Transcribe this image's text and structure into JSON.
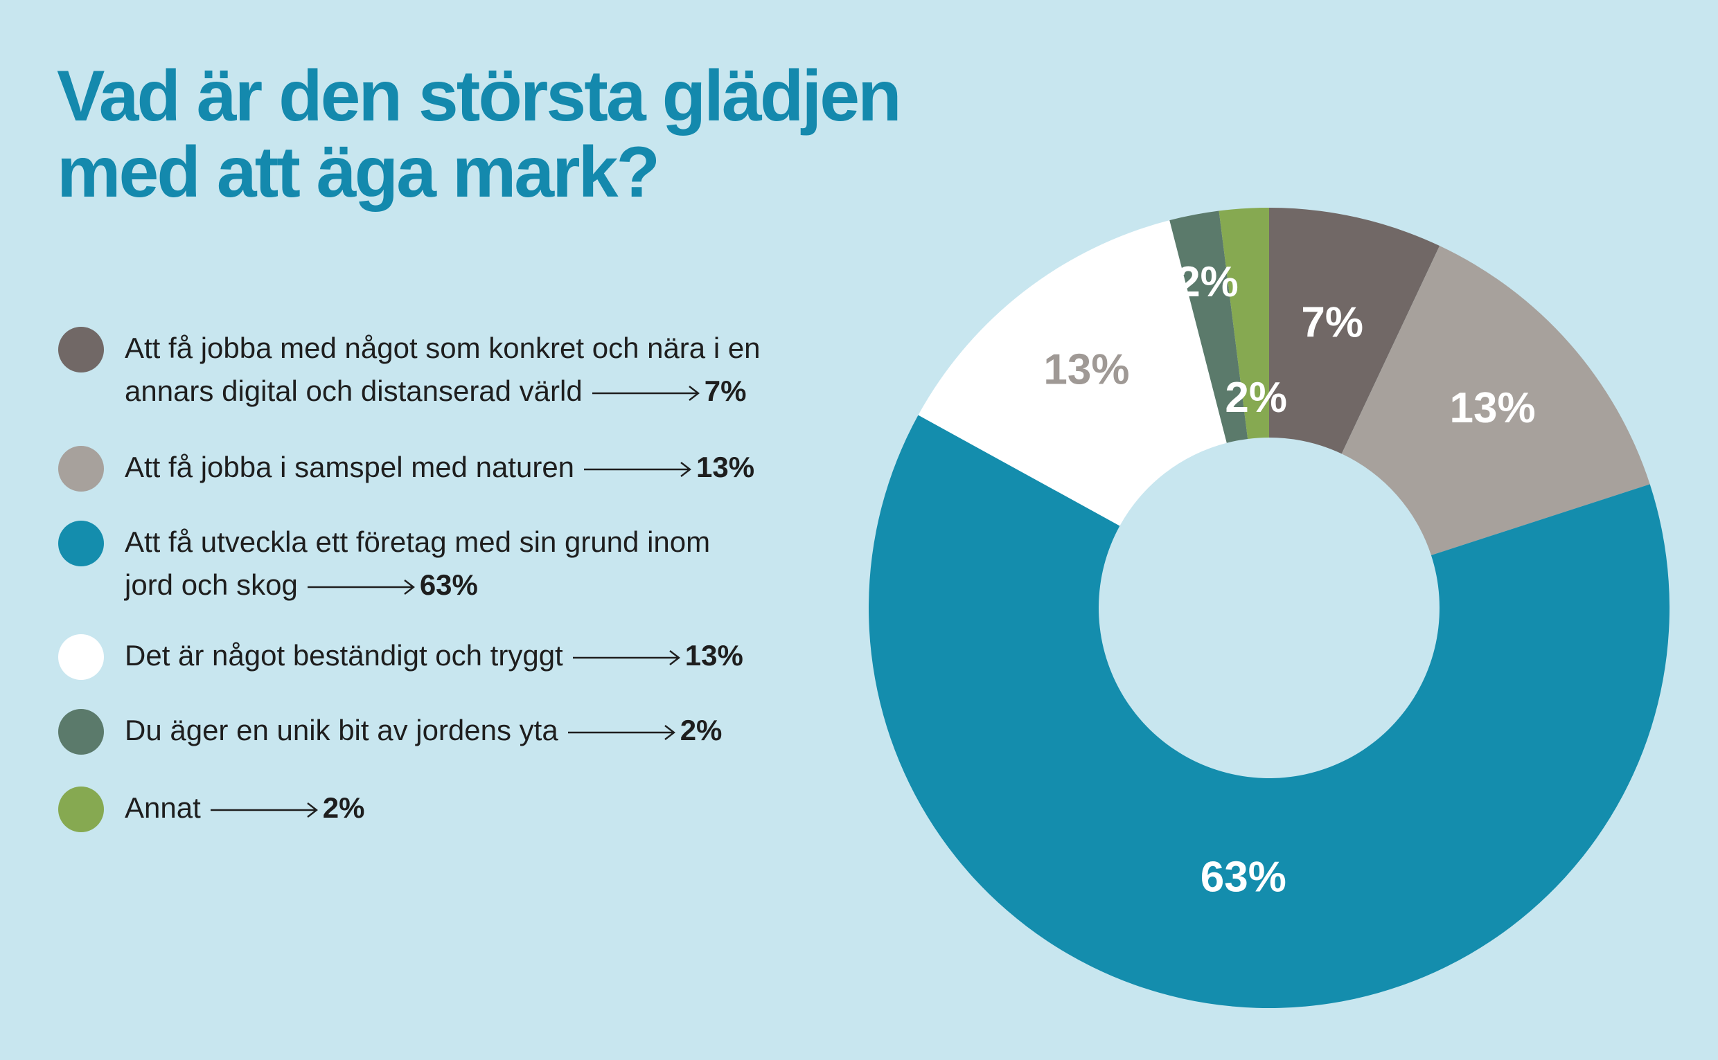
{
  "chart_data": {
    "type": "pie",
    "variant": "donut",
    "title_lines": [
      "Vad är den största glädjen",
      "med att äga mark?"
    ],
    "slices": [
      {
        "label_lines": [
          "Att få jobba med något som konkret och nära i en",
          "annars digital och distanserad värld"
        ],
        "value": 7,
        "display": "7%",
        "color": "#716866",
        "text_color": "#ffffff"
      },
      {
        "label_lines": [
          "Att få jobba i samspel med naturen"
        ],
        "value": 13,
        "display": "13%",
        "color": "#a7a19c",
        "text_color": "#ffffff"
      },
      {
        "label_lines": [
          "Att få utveckla ett företag med sin grund inom",
          "jord och skog"
        ],
        "value": 63,
        "display": "63%",
        "color": "#148dad",
        "text_color": "#ffffff"
      },
      {
        "label_lines": [
          "Det är något beständigt och tryggt"
        ],
        "value": 13,
        "display": "13%",
        "color": "#ffffff",
        "text_color": "#9f9995"
      },
      {
        "label_lines": [
          "Du äger en unik bit av jordens yta"
        ],
        "value": 2,
        "display": "2%",
        "color": "#5b7a6b",
        "text_color": "#ffffff"
      },
      {
        "label_lines": [
          "Annat"
        ],
        "value": 2,
        "display": "2%",
        "color": "#86a951",
        "text_color": "#ffffff"
      }
    ]
  }
}
